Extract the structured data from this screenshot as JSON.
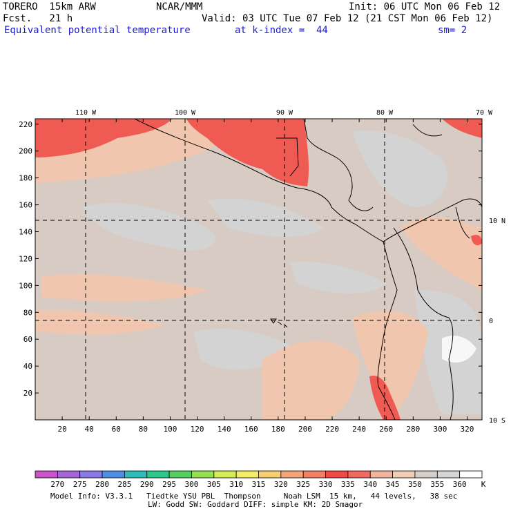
{
  "header": {
    "model": "TORERO  15km ARW",
    "org": "NCAR/MMM",
    "init": "Init: 06 UTC Mon 06 Feb 12",
    "fcst": "Fcst.   21 h",
    "valid": "Valid: 03 UTC Tue 07 Feb 12 (21 CST Mon 06 Feb 12)",
    "field": "Equivalent potential temperature",
    "level": "at k-index =  44",
    "smooth": "sm= 2"
  },
  "map": {
    "lon_labels": [
      "110 W",
      "100 W",
      "90 W",
      "80 W",
      "70 W"
    ],
    "lat_labels": [
      "10 N",
      "0",
      "10 S"
    ],
    "y_ticks": [
      "220",
      "200",
      "180",
      "160",
      "140",
      "120",
      "100",
      "80",
      "60",
      "40",
      "20"
    ],
    "x_ticks": [
      "20",
      "40",
      "60",
      "80",
      "100",
      "120",
      "140",
      "160",
      "180",
      "200",
      "220",
      "240",
      "260",
      "280",
      "300",
      "320"
    ],
    "x_ticks_values": [
      20,
      40,
      60,
      80,
      100,
      120,
      140,
      160,
      180,
      200,
      220,
      240,
      260,
      280,
      300,
      320
    ],
    "y_ticks_values": [
      220,
      200,
      180,
      160,
      140,
      120,
      100,
      80,
      60,
      40,
      20
    ]
  },
  "colorbar": {
    "unit": "K",
    "labels": [
      "270",
      "275",
      "280",
      "285",
      "290",
      "295",
      "300",
      "305",
      "310",
      "315",
      "320",
      "325",
      "330",
      "335",
      "340",
      "345",
      "350",
      "355",
      "360"
    ],
    "colors": [
      "#cc55cc",
      "#a766d8",
      "#8a7ae8",
      "#4f8fe6",
      "#2ebdb8",
      "#2cc98a",
      "#55d060",
      "#96df50",
      "#d3ec58",
      "#f3ec68",
      "#f7cf72",
      "#f5a47a",
      "#f37f66",
      "#ef4a46",
      "#f16a62",
      "#f2b59c",
      "#f0cdb4",
      "#d6cec8",
      "#d4d4d4",
      "#ffffff"
    ]
  },
  "footer": {
    "line1": "Model Info: V3.3.1   Tiedtke YSU PBL  Thompson     Noah LSM  15 km,   44 levels,   38 sec",
    "line2": "LW: Godd SW: Goddard DIFF: simple KM: 2D Smagor"
  }
}
